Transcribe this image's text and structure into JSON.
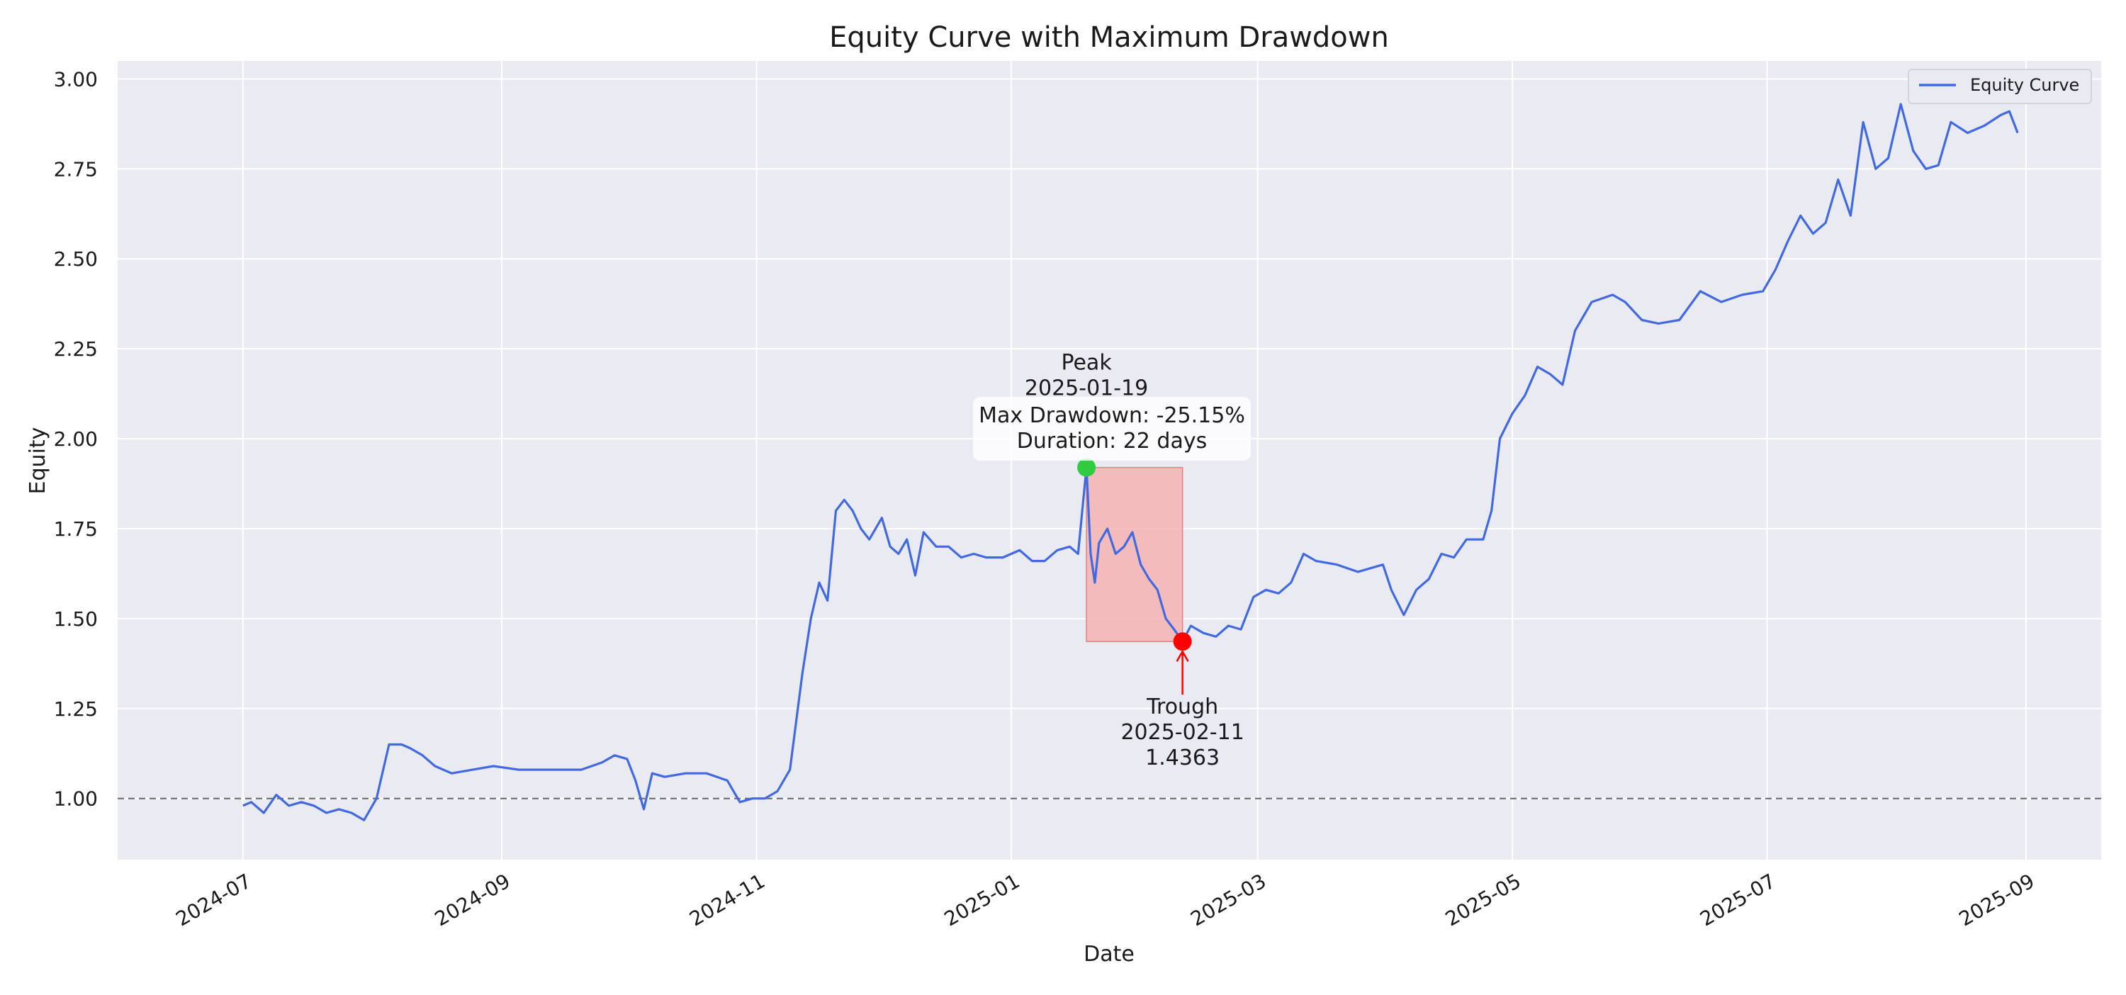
{
  "chart_data": {
    "type": "line",
    "title": "Equity Curve with Maximum Drawdown",
    "xlabel": "Date",
    "ylabel": "Equity",
    "xlim": [
      "2024-06-01",
      "2025-09-19"
    ],
    "ylim": [
      0.83,
      3.05
    ],
    "x_ticks": [
      "2024-07",
      "2024-09",
      "2024-11",
      "2025-01",
      "2025-03",
      "2025-05",
      "2025-07",
      "2025-09"
    ],
    "y_ticks": [
      1.0,
      1.25,
      1.5,
      1.75,
      2.0,
      2.25,
      2.5,
      2.75,
      3.0
    ],
    "y_tick_labels": [
      "1.00",
      "1.25",
      "1.50",
      "1.75",
      "2.00",
      "2.25",
      "2.50",
      "2.75",
      "3.00"
    ],
    "grid": true,
    "legend": {
      "position": "top-right",
      "entries": [
        "Equity Curve"
      ]
    },
    "baseline": {
      "y": 1.0,
      "style": "dashed",
      "color": "#666666"
    },
    "colors": {
      "line": "#4169e1",
      "peak": "#2ecc40",
      "trough": "#ff0000",
      "drawdown_fill": "#f4b3b3",
      "plot_bg": "#eaeaf2",
      "grid": "#ffffff"
    },
    "series": [
      {
        "name": "Equity Curve",
        "x": [
          "2024-07-01",
          "2024-07-03",
          "2024-07-06",
          "2024-07-09",
          "2024-07-12",
          "2024-07-15",
          "2024-07-18",
          "2024-07-21",
          "2024-07-24",
          "2024-07-27",
          "2024-07-30",
          "2024-08-02",
          "2024-08-05",
          "2024-08-08",
          "2024-08-10",
          "2024-08-13",
          "2024-08-16",
          "2024-08-20",
          "2024-08-25",
          "2024-08-30",
          "2024-09-05",
          "2024-09-10",
          "2024-09-15",
          "2024-09-20",
          "2024-09-25",
          "2024-09-28",
          "2024-10-01",
          "2024-10-03",
          "2024-10-05",
          "2024-10-07",
          "2024-10-10",
          "2024-10-15",
          "2024-10-20",
          "2024-10-25",
          "2024-10-28",
          "2024-10-31",
          "2024-11-03",
          "2024-11-06",
          "2024-11-09",
          "2024-11-12",
          "2024-11-14",
          "2024-11-16",
          "2024-11-18",
          "2024-11-20",
          "2024-11-22",
          "2024-11-24",
          "2024-11-26",
          "2024-11-28",
          "2024-12-01",
          "2024-12-03",
          "2024-12-05",
          "2024-12-07",
          "2024-12-09",
          "2024-12-11",
          "2024-12-14",
          "2024-12-17",
          "2024-12-20",
          "2024-12-23",
          "2024-12-26",
          "2024-12-30",
          "2025-01-03",
          "2025-01-06",
          "2025-01-09",
          "2025-01-12",
          "2025-01-15",
          "2025-01-17",
          "2025-01-19",
          "2025-01-20",
          "2025-01-21",
          "2025-01-22",
          "2025-01-24",
          "2025-01-26",
          "2025-01-28",
          "2025-01-30",
          "2025-02-01",
          "2025-02-03",
          "2025-02-05",
          "2025-02-07",
          "2025-02-09",
          "2025-02-11",
          "2025-02-13",
          "2025-02-16",
          "2025-02-19",
          "2025-02-22",
          "2025-02-25",
          "2025-02-28",
          "2025-03-03",
          "2025-03-06",
          "2025-03-09",
          "2025-03-12",
          "2025-03-15",
          "2025-03-20",
          "2025-03-25",
          "2025-03-28",
          "2025-03-31",
          "2025-04-02",
          "2025-04-05",
          "2025-04-08",
          "2025-04-11",
          "2025-04-14",
          "2025-04-17",
          "2025-04-20",
          "2025-04-24",
          "2025-04-26",
          "2025-04-28",
          "2025-05-01",
          "2025-05-04",
          "2025-05-07",
          "2025-05-10",
          "2025-05-13",
          "2025-05-16",
          "2025-05-20",
          "2025-05-25",
          "2025-05-28",
          "2025-06-01",
          "2025-06-05",
          "2025-06-10",
          "2025-06-15",
          "2025-06-20",
          "2025-06-25",
          "2025-06-30",
          "2025-07-03",
          "2025-07-06",
          "2025-07-09",
          "2025-07-12",
          "2025-07-15",
          "2025-07-18",
          "2025-07-21",
          "2025-07-24",
          "2025-07-27",
          "2025-07-30",
          "2025-08-02",
          "2025-08-05",
          "2025-08-08",
          "2025-08-11",
          "2025-08-14",
          "2025-08-18",
          "2025-08-22",
          "2025-08-26",
          "2025-08-28",
          "2025-08-30"
        ],
        "values": [
          0.98,
          0.99,
          0.96,
          1.01,
          0.98,
          0.99,
          0.98,
          0.96,
          0.97,
          0.96,
          0.94,
          1.0,
          1.15,
          1.15,
          1.14,
          1.12,
          1.09,
          1.07,
          1.08,
          1.09,
          1.08,
          1.08,
          1.08,
          1.08,
          1.1,
          1.12,
          1.11,
          1.05,
          0.97,
          1.07,
          1.06,
          1.07,
          1.07,
          1.05,
          0.99,
          1.0,
          1.0,
          1.02,
          1.08,
          1.35,
          1.5,
          1.6,
          1.55,
          1.8,
          1.83,
          1.8,
          1.75,
          1.72,
          1.78,
          1.7,
          1.68,
          1.72,
          1.62,
          1.74,
          1.7,
          1.7,
          1.67,
          1.68,
          1.67,
          1.67,
          1.69,
          1.66,
          1.66,
          1.69,
          1.7,
          1.68,
          1.92,
          1.68,
          1.6,
          1.71,
          1.75,
          1.68,
          1.7,
          1.74,
          1.65,
          1.61,
          1.58,
          1.5,
          1.47,
          1.4363,
          1.48,
          1.46,
          1.45,
          1.48,
          1.47,
          1.56,
          1.58,
          1.57,
          1.6,
          1.68,
          1.66,
          1.65,
          1.63,
          1.64,
          1.65,
          1.58,
          1.51,
          1.58,
          1.61,
          1.68,
          1.67,
          1.72,
          1.72,
          1.8,
          2.0,
          2.07,
          2.12,
          2.2,
          2.18,
          2.15,
          2.3,
          2.38,
          2.4,
          2.38,
          2.33,
          2.32,
          2.33,
          2.41,
          2.38,
          2.4,
          2.41,
          2.47,
          2.55,
          2.62,
          2.57,
          2.6,
          2.72,
          2.62,
          2.88,
          2.75,
          2.78,
          2.93,
          2.8,
          2.75,
          2.76,
          2.88,
          2.85,
          2.87,
          2.9,
          2.91,
          2.85
        ]
      }
    ],
    "annotations": {
      "peak": {
        "label": "Peak",
        "date": "2025-01-19",
        "value": 1.92
      },
      "trough": {
        "label": "Trough",
        "date": "2025-02-11",
        "value": 1.4363,
        "value_label": "1.4363"
      },
      "drawdown_box": {
        "line1": "Max Drawdown: -25.15%",
        "line2": "Duration: 22 days"
      }
    }
  }
}
